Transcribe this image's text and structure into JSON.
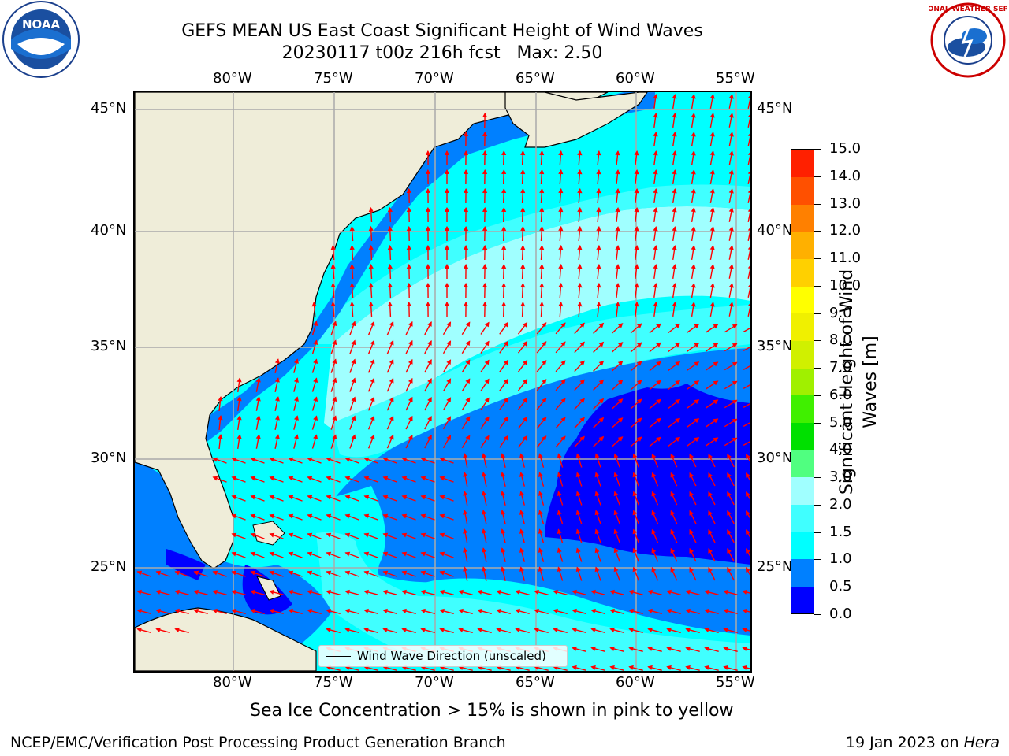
{
  "header": {
    "title_line1": "GEFS MEAN US East Coast Significant Height of Wind Waves",
    "title_line2": "20230117 t00z 216h fcst   Max: 2.50"
  },
  "logos": {
    "left": {
      "name": "noaa-logo",
      "text": "NOAA"
    },
    "right": {
      "name": "nws-logo",
      "text": "NATIONAL WEATHER SERVICE"
    }
  },
  "map": {
    "lon_labels": [
      "80°W",
      "75°W",
      "70°W",
      "65°W",
      "60°W",
      "55°W"
    ],
    "lat_labels": [
      "45°N",
      "40°N",
      "35°N",
      "30°N",
      "25°N"
    ],
    "legend_label": "Wind Wave Direction (unscaled)",
    "arrow_color": "#ff0000",
    "land_color": "#efedd9"
  },
  "colorbar": {
    "label": "Significant Height of Wind Waves [m]",
    "ticks": [
      "0.0",
      "0.5",
      "1.0",
      "1.5",
      "2.0",
      "3.0",
      "4.0",
      "5.0",
      "6.0",
      "7.0",
      "8.0",
      "9.0",
      "10.0",
      "11.0",
      "12.0",
      "13.0",
      "14.0",
      "15.0"
    ],
    "colors": [
      "#0000ff",
      "#0080ff",
      "#00ffff",
      "#40ffff",
      "#a0ffff",
      "#50ff80",
      "#00e000",
      "#40f000",
      "#a0f000",
      "#d0f000",
      "#f0f000",
      "#ffff00",
      "#ffd000",
      "#ffb000",
      "#ff8000",
      "#ff5000",
      "#ff2000",
      "#ff0000"
    ]
  },
  "notes": {
    "sea_ice": "Sea Ice Concentration > 15% is shown in pink to yellow"
  },
  "footer": {
    "left": "NCEP/EMC/Verification Post Processing Product Generation Branch",
    "right_prefix": "19 Jan 2023 on ",
    "right_machine": "Hera"
  }
}
